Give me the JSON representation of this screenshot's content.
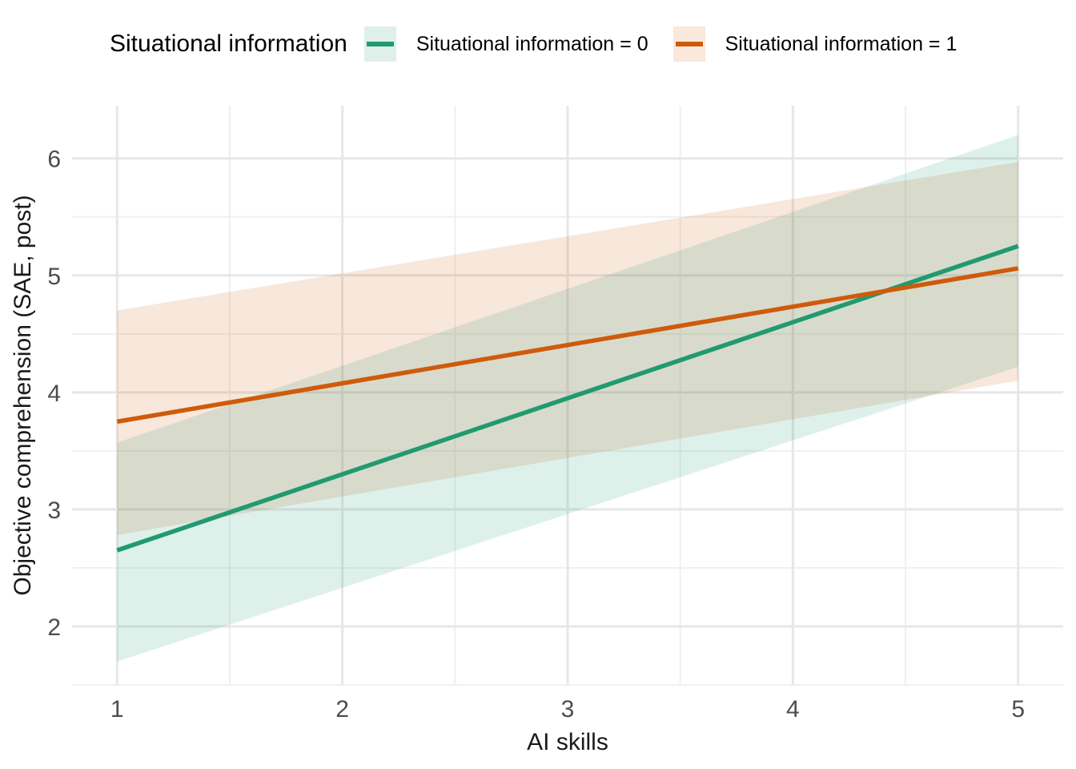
{
  "figure": {
    "background_color": "#ffffff",
    "grid_major_color": "#e7e7e7",
    "grid_minor_color": "#f0f0f0",
    "tick_label_color": "#4d4d4d",
    "axis_title_color": "#1a1a1a"
  },
  "legend": {
    "title": "Situational information",
    "items": [
      {
        "label": "Situational information = 0",
        "line_color": "#219a70",
        "key_fill": "#def0e9"
      },
      {
        "label": "Situational information = 1",
        "line_color": "#ce5b0c",
        "key_fill": "#fae8dc"
      }
    ]
  },
  "chart_data": {
    "type": "line",
    "title": "",
    "legend_title": "Situational information",
    "legend_position": "top",
    "xlabel": "AI skills",
    "ylabel": "Objective comprehension (SAE, post)",
    "xlim": [
      0.8,
      5.2
    ],
    "ylim": [
      1.5,
      6.45
    ],
    "x_ticks": [
      1,
      2,
      3,
      4,
      5
    ],
    "y_ticks": [
      2,
      3,
      4,
      5,
      6
    ],
    "x_minor_ticks": [
      1.5,
      2.5,
      3.5,
      4.5
    ],
    "y_minor_ticks": [
      1.5,
      2.5,
      3.5,
      4.5,
      5.5
    ],
    "grid": true,
    "ribbon_opacity": 0.15,
    "series": [
      {
        "name": "Situational information = 0",
        "color": "#219a70",
        "x": [
          1,
          5
        ],
        "y": [
          2.65,
          5.25
        ],
        "ci_lower": [
          1.7,
          4.22
        ],
        "ci_upper": [
          3.57,
          6.2
        ]
      },
      {
        "name": "Situational information = 1",
        "color": "#ce5b0c",
        "x": [
          1,
          5
        ],
        "y": [
          3.75,
          5.06
        ],
        "ci_lower": [
          2.78,
          4.1
        ],
        "ci_upper": [
          4.7,
          5.97
        ]
      }
    ]
  }
}
